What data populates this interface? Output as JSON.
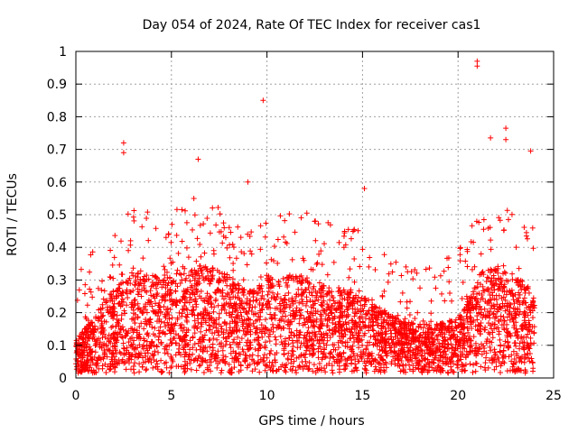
{
  "chart_data": {
    "type": "scatter",
    "title": "Day 054 of 2024, Rate Of TEC Index for receiver cas1",
    "xlabel": "GPS time / hours",
    "ylabel": "ROTI / TECUs",
    "xlim": [
      0,
      25
    ],
    "ylim": [
      0,
      1
    ],
    "x_ticks": [
      "0",
      "5",
      "10",
      "15",
      "20",
      "25"
    ],
    "y_ticks": [
      "0",
      "0.1",
      "0.2",
      "0.3",
      "0.4",
      "0.5",
      "0.6",
      "0.7",
      "0.8",
      "0.9",
      "1"
    ],
    "grid": true,
    "marker": "+",
    "color": "#ff0000",
    "notable_points": [
      {
        "x": 2.5,
        "y": 0.72
      },
      {
        "x": 2.5,
        "y": 0.69
      },
      {
        "x": 6.4,
        "y": 0.67
      },
      {
        "x": 9.0,
        "y": 0.6
      },
      {
        "x": 9.8,
        "y": 0.85
      },
      {
        "x": 15.1,
        "y": 0.58
      },
      {
        "x": 17.1,
        "y": 0.26
      },
      {
        "x": 21.0,
        "y": 0.97
      },
      {
        "x": 21.0,
        "y": 0.955
      },
      {
        "x": 21.7,
        "y": 0.735
      },
      {
        "x": 22.5,
        "y": 0.765
      },
      {
        "x": 22.5,
        "y": 0.73
      },
      {
        "x": 23.8,
        "y": 0.695
      }
    ],
    "density_profile": [
      {
        "x": 0,
        "y": 0.1
      },
      {
        "x": 1,
        "y": 0.18
      },
      {
        "x": 2,
        "y": 0.26
      },
      {
        "x": 3,
        "y": 0.3
      },
      {
        "x": 4,
        "y": 0.3
      },
      {
        "x": 5,
        "y": 0.3
      },
      {
        "x": 6,
        "y": 0.33
      },
      {
        "x": 7,
        "y": 0.33
      },
      {
        "x": 8,
        "y": 0.3
      },
      {
        "x": 9,
        "y": 0.25
      },
      {
        "x": 10,
        "y": 0.3
      },
      {
        "x": 11,
        "y": 0.3
      },
      {
        "x": 12,
        "y": 0.3
      },
      {
        "x": 13,
        "y": 0.27
      },
      {
        "x": 14,
        "y": 0.26
      },
      {
        "x": 15,
        "y": 0.25
      },
      {
        "x": 16,
        "y": 0.2
      },
      {
        "x": 17,
        "y": 0.16
      },
      {
        "x": 18,
        "y": 0.15
      },
      {
        "x": 19,
        "y": 0.15
      },
      {
        "x": 20,
        "y": 0.17
      },
      {
        "x": 21,
        "y": 0.3
      },
      {
        "x": 22,
        "y": 0.33
      },
      {
        "x": 23,
        "y": 0.3
      },
      {
        "x": 24,
        "y": 0.25
      }
    ]
  }
}
